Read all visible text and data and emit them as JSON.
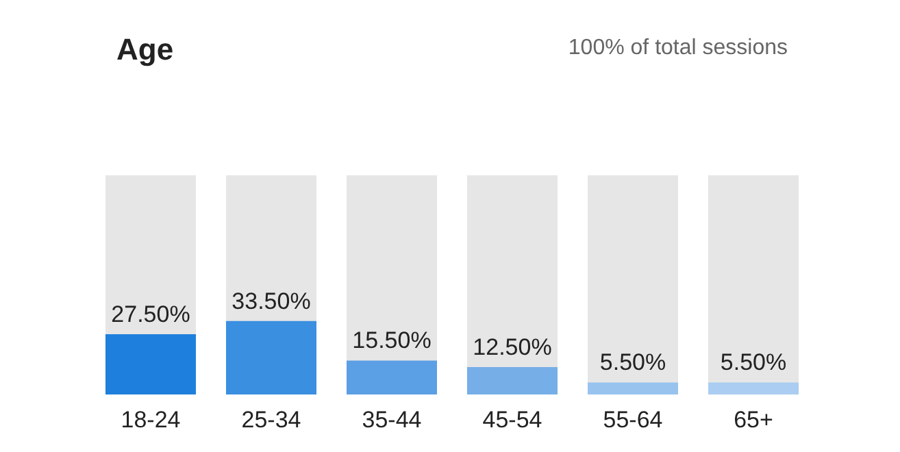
{
  "chart_data": {
    "type": "bar",
    "title": "Age",
    "subtitle": "100% of total sessions",
    "categories": [
      "18-24",
      "25-34",
      "35-44",
      "45-54",
      "55-64",
      "65+"
    ],
    "values": [
      27.5,
      33.5,
      15.5,
      12.5,
      5.5,
      5.5
    ],
    "colors": [
      "#1e80dc",
      "#3a8fe0",
      "#5b9fe4",
      "#76aee8",
      "#98c3ef",
      "#aacdf1"
    ],
    "value_labels": [
      "27.50%",
      "33.50%",
      "15.50%",
      "12.50%",
      "5.50%",
      "5.50%"
    ],
    "ylim": [
      0,
      100
    ],
    "tick_labels": "x"
  }
}
